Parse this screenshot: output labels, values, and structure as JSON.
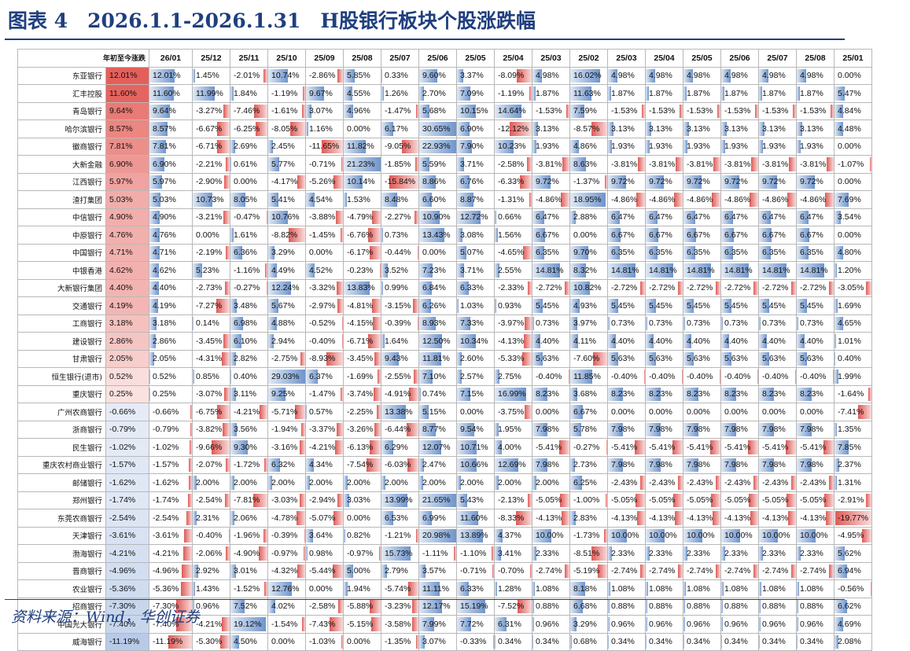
{
  "title": "图表 4　2026.1.1-2026.1.31　H股银行板块个股涨跌幅",
  "source": "资料来源：Wind，华创证券",
  "chart_data": {
    "type": "table",
    "columns": [
      "年初至今涨跌",
      "26/01",
      "25/12",
      "25/11",
      "25/10",
      "25/09",
      "25/08",
      "25/07",
      "25/06",
      "25/05",
      "25/04",
      "25/03",
      "25/02",
      "25/03",
      "25/04",
      "25/05",
      "25/06",
      "25/07",
      "25/08",
      "25/01"
    ],
    "colors": {
      "positive": "#d9534f",
      "negative": "#4f81bd"
    },
    "rows": [
      {
        "name": "东亚银行",
        "values": [
          12.01,
          12.01,
          1.45,
          -2.01,
          10.74,
          -2.86,
          5.85,
          0.33,
          9.6,
          3.37,
          -8.09,
          4.98,
          16.02,
          4.98,
          4.98,
          4.98,
          4.98,
          4.98,
          4.98,
          0.0
        ]
      },
      {
        "name": "汇丰控股",
        "values": [
          11.6,
          11.6,
          11.99,
          1.84,
          -1.19,
          9.67,
          4.55,
          1.26,
          2.7,
          7.09,
          -1.19,
          1.87,
          11.63,
          1.87,
          1.87,
          1.87,
          1.87,
          1.87,
          1.87,
          5.47
        ]
      },
      {
        "name": "青岛银行",
        "values": [
          9.64,
          9.64,
          -3.27,
          -7.46,
          -1.61,
          3.07,
          4.96,
          -1.47,
          5.68,
          10.15,
          14.64,
          -1.53,
          7.59,
          -1.53,
          -1.53,
          -1.53,
          -1.53,
          -1.53,
          -1.53,
          4.84
        ]
      },
      {
        "name": "哈尔滨银行",
        "values": [
          8.57,
          8.57,
          -6.67,
          -6.25,
          -8.05,
          1.16,
          0.0,
          6.17,
          30.65,
          6.9,
          -12.12,
          3.13,
          -8.57,
          3.13,
          3.13,
          3.13,
          3.13,
          3.13,
          3.13,
          4.48
        ]
      },
      {
        "name": "徽商银行",
        "values": [
          7.81,
          7.81,
          -6.71,
          2.69,
          2.45,
          -11.65,
          11.82,
          -9.05,
          22.93,
          7.9,
          10.23,
          1.93,
          4.86,
          1.93,
          1.93,
          1.93,
          1.93,
          1.93,
          1.93,
          0.0
        ]
      },
      {
        "name": "大新金融",
        "values": [
          6.9,
          6.9,
          -2.21,
          0.61,
          5.77,
          -0.71,
          21.23,
          -1.85,
          5.59,
          3.71,
          -2.58,
          -3.81,
          8.63,
          -3.81,
          -3.81,
          -3.81,
          -3.81,
          -3.81,
          -3.81,
          -1.07
        ]
      },
      {
        "name": "江西银行",
        "values": [
          5.97,
          5.97,
          -2.9,
          0.0,
          -4.17,
          -5.26,
          10.14,
          -15.84,
          8.86,
          6.76,
          -6.33,
          9.72,
          -1.37,
          9.72,
          9.72,
          9.72,
          9.72,
          9.72,
          9.72,
          0.0
        ]
      },
      {
        "name": "渣打集团",
        "values": [
          5.03,
          5.03,
          10.73,
          8.05,
          5.41,
          4.54,
          1.53,
          8.48,
          6.6,
          8.87,
          -1.31,
          -4.86,
          18.95,
          -4.86,
          -4.86,
          -4.86,
          -4.86,
          -4.86,
          -4.86,
          7.69
        ]
      },
      {
        "name": "中信银行",
        "values": [
          4.9,
          4.9,
          -3.21,
          -0.47,
          10.76,
          -3.88,
          -4.79,
          -2.27,
          10.9,
          12.72,
          0.66,
          6.47,
          2.88,
          6.47,
          6.47,
          6.47,
          6.47,
          6.47,
          6.47,
          3.54
        ]
      },
      {
        "name": "中原银行",
        "values": [
          4.76,
          4.76,
          0.0,
          1.61,
          -8.82,
          -1.45,
          -6.76,
          0.73,
          13.43,
          3.08,
          1.56,
          6.67,
          0.0,
          6.67,
          6.67,
          6.67,
          6.67,
          6.67,
          6.67,
          0.0
        ]
      },
      {
        "name": "中国银行",
        "values": [
          4.71,
          4.71,
          -2.19,
          6.36,
          3.29,
          0.0,
          -6.17,
          -0.44,
          0.0,
          5.07,
          -4.65,
          6.35,
          9.7,
          6.35,
          6.35,
          6.35,
          6.35,
          6.35,
          6.35,
          4.8
        ]
      },
      {
        "name": "中银香港",
        "values": [
          4.62,
          4.62,
          5.23,
          -1.16,
          4.49,
          4.52,
          -0.23,
          3.52,
          7.23,
          3.71,
          2.55,
          14.81,
          8.32,
          14.81,
          14.81,
          14.81,
          14.81,
          14.81,
          14.81,
          1.2
        ]
      },
      {
        "name": "大新银行集团",
        "values": [
          4.4,
          4.4,
          -2.73,
          -0.27,
          12.24,
          -3.32,
          13.83,
          0.99,
          6.84,
          6.33,
          -2.33,
          -2.72,
          10.82,
          -2.72,
          -2.72,
          -2.72,
          -2.72,
          -2.72,
          -2.72,
          -3.05
        ]
      },
      {
        "name": "交通银行",
        "values": [
          4.19,
          4.19,
          -7.27,
          3.48,
          5.67,
          -2.97,
          -4.81,
          -3.15,
          6.26,
          1.03,
          0.93,
          5.45,
          4.93,
          5.45,
          5.45,
          5.45,
          5.45,
          5.45,
          5.45,
          1.69
        ]
      },
      {
        "name": "工商银行",
        "values": [
          3.18,
          3.18,
          0.14,
          6.98,
          4.88,
          -0.52,
          -4.15,
          -0.39,
          8.93,
          7.33,
          -3.97,
          0.73,
          3.97,
          0.73,
          0.73,
          0.73,
          0.73,
          0.73,
          0.73,
          4.65
        ]
      },
      {
        "name": "建设银行",
        "values": [
          2.86,
          2.86,
          -3.45,
          6.1,
          2.94,
          -0.4,
          -6.71,
          1.64,
          12.5,
          10.34,
          -4.13,
          4.4,
          4.11,
          4.4,
          4.4,
          4.4,
          4.4,
          4.4,
          4.4,
          1.01
        ]
      },
      {
        "name": "甘肃银行",
        "values": [
          2.05,
          2.05,
          -4.31,
          2.82,
          -2.75,
          -8.93,
          -3.45,
          9.43,
          11.81,
          2.6,
          -5.33,
          5.63,
          -7.6,
          5.63,
          5.63,
          5.63,
          5.63,
          5.63,
          5.63,
          0.4
        ]
      },
      {
        "name": "恒生银行(退市)",
        "values": [
          0.52,
          0.52,
          0.85,
          0.4,
          29.03,
          6.37,
          -1.69,
          -2.55,
          7.1,
          2.57,
          2.75,
          -0.4,
          11.85,
          -0.4,
          -0.4,
          -0.4,
          -0.4,
          -0.4,
          -0.4,
          1.99
        ]
      },
      {
        "name": "重庆银行",
        "values": [
          0.25,
          0.25,
          -3.07,
          3.11,
          9.25,
          -1.47,
          -3.74,
          -4.91,
          0.74,
          7.15,
          16.99,
          8.23,
          3.68,
          8.23,
          8.23,
          8.23,
          8.23,
          8.23,
          8.23,
          -1.64
        ]
      },
      {
        "name": "广州农商银行",
        "values": [
          -0.66,
          -0.66,
          -6.75,
          -4.21,
          -5.71,
          0.57,
          -2.25,
          13.38,
          5.15,
          0.0,
          -3.75,
          0.0,
          6.67,
          0.0,
          0.0,
          0.0,
          0.0,
          0.0,
          0.0,
          -7.41
        ]
      },
      {
        "name": "浙商银行",
        "values": [
          -0.79,
          -0.79,
          -3.82,
          3.56,
          -1.94,
          -3.37,
          -3.26,
          -6.44,
          8.77,
          9.54,
          1.95,
          7.98,
          5.78,
          7.98,
          7.98,
          7.98,
          7.98,
          7.98,
          7.98,
          1.35
        ]
      },
      {
        "name": "民生银行",
        "values": [
          -1.02,
          -1.02,
          -9.66,
          9.3,
          -3.16,
          -4.21,
          -6.13,
          6.29,
          12.07,
          10.71,
          4.0,
          -5.41,
          -0.27,
          -5.41,
          -5.41,
          -5.41,
          -5.41,
          -5.41,
          -5.41,
          7.85
        ]
      },
      {
        "name": "重庆农村商业银行",
        "values": [
          -1.57,
          -1.57,
          -2.07,
          -1.72,
          6.32,
          4.34,
          -7.54,
          -6.03,
          2.47,
          10.66,
          12.69,
          7.98,
          2.73,
          7.98,
          7.98,
          7.98,
          7.98,
          7.98,
          7.98,
          2.37
        ]
      },
      {
        "name": "邮储银行",
        "values": [
          -1.62,
          -1.62,
          2.0,
          2.0,
          2.0,
          2.0,
          2.0,
          2.0,
          2.0,
          2.0,
          2.0,
          2.0,
          6.25,
          -2.43,
          -2.43,
          -2.43,
          -2.43,
          -2.43,
          -2.43,
          1.31
        ]
      },
      {
        "name": "郑州银行",
        "values": [
          -1.74,
          -1.74,
          -2.54,
          -7.81,
          -3.03,
          -2.94,
          3.03,
          13.99,
          21.65,
          5.43,
          -2.13,
          -5.05,
          -1.0,
          -5.05,
          -5.05,
          -5.05,
          -5.05,
          -5.05,
          -5.05,
          -2.91
        ]
      },
      {
        "name": "东莞农商银行",
        "values": [
          -2.54,
          -2.54,
          2.31,
          2.06,
          -4.78,
          -5.07,
          0.0,
          6.53,
          6.99,
          11.6,
          -8.33,
          -4.13,
          2.83,
          -4.13,
          -4.13,
          -4.13,
          -4.13,
          -4.13,
          -4.13,
          -19.77
        ]
      },
      {
        "name": "天津银行",
        "values": [
          -3.61,
          -3.61,
          -0.4,
          -1.96,
          -0.39,
          3.64,
          0.82,
          -1.21,
          20.98,
          13.89,
          4.37,
          10.0,
          -1.73,
          10.0,
          10.0,
          10.0,
          10.0,
          10.0,
          10.0,
          -4.95
        ]
      },
      {
        "name": "渤海银行",
        "values": [
          -4.21,
          -4.21,
          -2.06,
          -4.9,
          -0.97,
          0.98,
          -0.97,
          15.73,
          -1.11,
          -1.1,
          3.41,
          2.33,
          -8.51,
          2.33,
          2.33,
          2.33,
          2.33,
          2.33,
          2.33,
          5.62
        ]
      },
      {
        "name": "晋商银行",
        "values": [
          -4.96,
          -4.96,
          2.92,
          3.01,
          -4.32,
          -5.44,
          5.0,
          2.79,
          3.57,
          -0.71,
          -0.7,
          -2.74,
          -5.19,
          -2.74,
          -2.74,
          -2.74,
          -2.74,
          -2.74,
          -2.74,
          6.94
        ]
      },
      {
        "name": "农业银行",
        "values": [
          -5.36,
          -5.36,
          1.43,
          -1.52,
          12.76,
          0.0,
          1.94,
          -5.74,
          11.11,
          6.33,
          1.28,
          1.08,
          8.18,
          1.08,
          1.08,
          1.08,
          1.08,
          1.08,
          1.08,
          -0.56
        ]
      },
      {
        "name": "招商银行",
        "values": [
          -7.3,
          -7.3,
          0.96,
          7.52,
          4.02,
          -2.58,
          -5.88,
          -3.23,
          12.17,
          15.19,
          -7.52,
          0.88,
          6.68,
          0.88,
          0.88,
          0.88,
          0.88,
          0.88,
          0.88,
          6.62
        ]
      },
      {
        "name": "中国光大银行",
        "values": [
          -7.4,
          -7.4,
          -4.21,
          19.12,
          -1.54,
          -7.43,
          -5.15,
          -3.58,
          7.99,
          7.72,
          6.31,
          0.96,
          3.29,
          0.96,
          0.96,
          0.96,
          0.96,
          0.96,
          0.96,
          4.69
        ]
      },
      {
        "name": "威海银行",
        "values": [
          -11.19,
          -11.19,
          -5.3,
          4.5,
          0.0,
          -1.03,
          0.0,
          -1.35,
          3.07,
          -0.33,
          0.34,
          0.34,
          0.68,
          0.34,
          0.34,
          0.34,
          0.34,
          0.34,
          0.34,
          2.08
        ]
      }
    ]
  }
}
